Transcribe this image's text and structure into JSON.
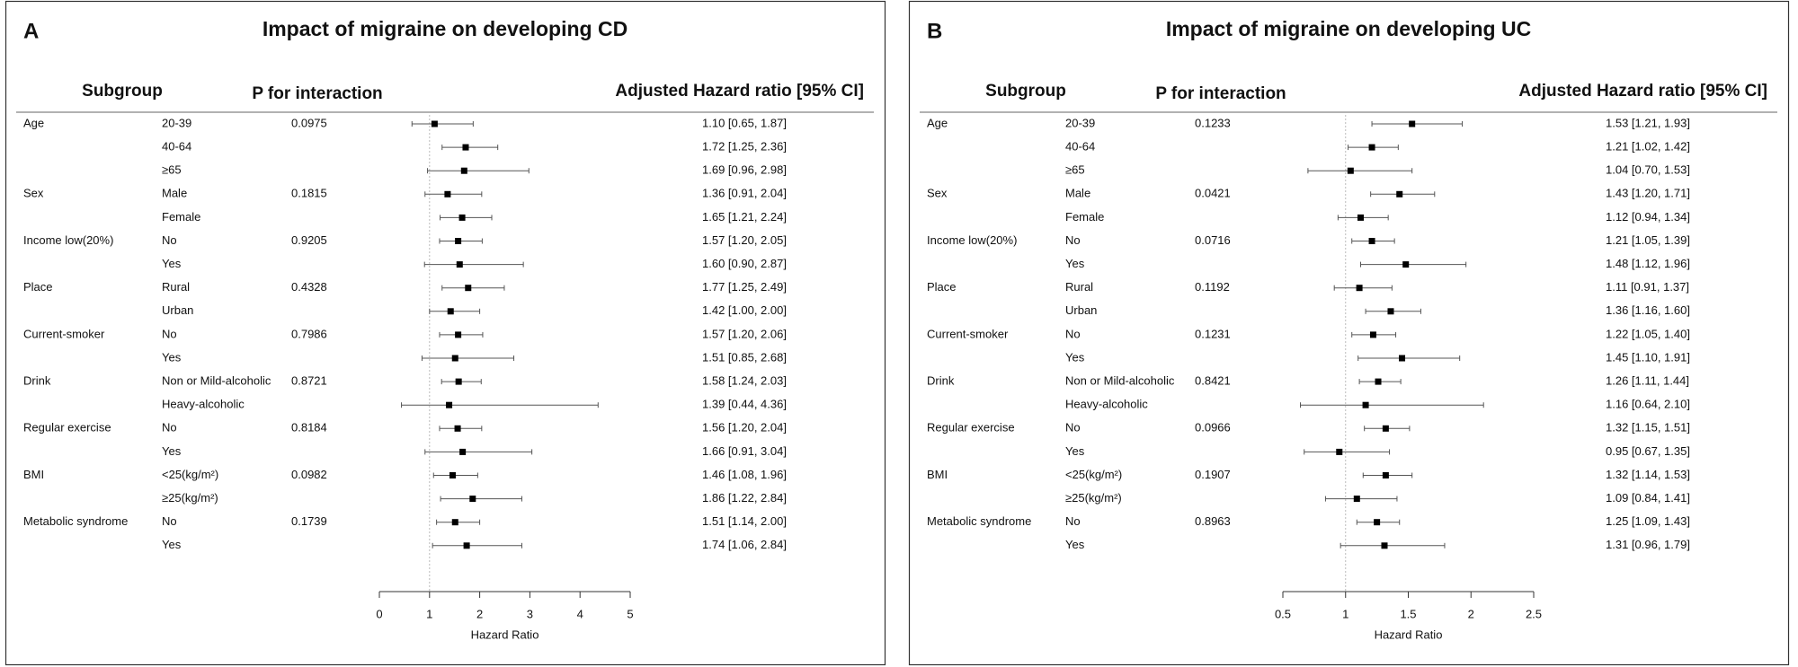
{
  "chart_data": [
    {
      "type": "forest",
      "panel_label": "A",
      "title": "Impact of migraine on developing CD",
      "columns": [
        "Subgroup",
        "P for interaction",
        "Adjusted Hazard ratio [95% CI]"
      ],
      "groups": [
        "Age",
        null,
        null,
        "Sex",
        null,
        "Income low(20%)",
        null,
        "Place",
        null,
        "Current-smoker",
        null,
        "Drink",
        null,
        "Regular exercise",
        null,
        "BMI",
        null,
        "Metabolic syndrome",
        null
      ],
      "categories": [
        "20-39",
        "40-64",
        "≥65",
        "Male",
        "Female",
        "No",
        "Yes",
        "Rural",
        "Urban",
        "No",
        "Yes",
        "Non or Mild-alcoholic",
        "Heavy-alcoholic",
        "No",
        "Yes",
        "<25(kg/m²)",
        "≥25(kg/m²)",
        "No",
        "Yes"
      ],
      "p_values": [
        0.0975,
        null,
        null,
        0.1815,
        null,
        0.9205,
        null,
        0.4328,
        null,
        0.7986,
        null,
        0.8721,
        null,
        0.8184,
        null,
        0.0982,
        null,
        0.1739,
        null
      ],
      "values": [
        1.1,
        1.72,
        1.69,
        1.36,
        1.65,
        1.57,
        1.6,
        1.77,
        1.42,
        1.57,
        1.51,
        1.58,
        1.39,
        1.56,
        1.66,
        1.46,
        1.86,
        1.51,
        1.74
      ],
      "lower": [
        0.65,
        1.25,
        0.96,
        0.91,
        1.21,
        1.2,
        0.9,
        1.25,
        1.0,
        1.2,
        0.85,
        1.24,
        0.44,
        1.2,
        0.91,
        1.08,
        1.22,
        1.14,
        1.06
      ],
      "upper": [
        1.87,
        2.36,
        2.98,
        2.04,
        2.24,
        2.05,
        2.87,
        2.49,
        2.0,
        2.06,
        2.68,
        2.03,
        4.36,
        2.04,
        3.04,
        1.96,
        2.84,
        2.0,
        2.84
      ],
      "value_labels": [
        "1.10 [0.65, 1.87]",
        "1.72 [1.25, 2.36]",
        "1.69 [0.96, 2.98]",
        "1.36 [0.91, 2.04]",
        "1.65 [1.21, 2.24]",
        "1.57 [1.20, 2.05]",
        "1.60 [0.90, 2.87]",
        "1.77 [1.25, 2.49]",
        "1.42 [1.00, 2.00]",
        "1.57 [1.20, 2.06]",
        "1.51 [0.85, 2.68]",
        "1.58 [1.24, 2.03]",
        "1.39 [0.44, 4.36]",
        "1.56 [1.20, 2.04]",
        "1.66 [0.91, 3.04]",
        "1.46 [1.08, 1.96]",
        "1.86 [1.22, 2.84]",
        "1.51 [1.14, 2.00]",
        "1.74 [1.06, 2.84]"
      ],
      "xlim": [
        0,
        5
      ],
      "xticks": [
        0,
        1,
        2,
        3,
        4,
        5
      ],
      "ref_line": 1,
      "xlabel": "Hazard Ratio",
      "color": "#000000"
    },
    {
      "type": "forest",
      "panel_label": "B",
      "title": "Impact of migraine on developing UC",
      "columns": [
        "Subgroup",
        "P for interaction",
        "Adjusted Hazard ratio [95% CI]"
      ],
      "groups": [
        "Age",
        null,
        null,
        "Sex",
        null,
        "Income low(20%)",
        null,
        "Place",
        null,
        "Current-smoker",
        null,
        "Drink",
        null,
        "Regular exercise",
        null,
        "BMI",
        null,
        "Metabolic syndrome",
        null
      ],
      "categories": [
        "20-39",
        "40-64",
        "≥65",
        "Male",
        "Female",
        "No",
        "Yes",
        "Rural",
        "Urban",
        "No",
        "Yes",
        "Non or Mild-alcoholic",
        "Heavy-alcoholic",
        "No",
        "Yes",
        "<25(kg/m²)",
        "≥25(kg/m²)",
        "No",
        "Yes"
      ],
      "p_values": [
        0.1233,
        null,
        null,
        0.0421,
        null,
        0.0716,
        null,
        0.1192,
        null,
        0.1231,
        null,
        0.8421,
        null,
        0.0966,
        null,
        0.1907,
        null,
        0.8963,
        null
      ],
      "values": [
        1.53,
        1.21,
        1.04,
        1.43,
        1.12,
        1.21,
        1.48,
        1.11,
        1.36,
        1.22,
        1.45,
        1.26,
        1.16,
        1.32,
        0.95,
        1.32,
        1.09,
        1.25,
        1.31
      ],
      "lower": [
        1.21,
        1.02,
        0.7,
        1.2,
        0.94,
        1.05,
        1.12,
        0.91,
        1.16,
        1.05,
        1.1,
        1.11,
        0.64,
        1.15,
        0.67,
        1.14,
        0.84,
        1.09,
        0.96
      ],
      "upper": [
        1.93,
        1.42,
        1.53,
        1.71,
        1.34,
        1.39,
        1.96,
        1.37,
        1.6,
        1.4,
        1.91,
        1.44,
        2.1,
        1.51,
        1.35,
        1.53,
        1.41,
        1.43,
        1.79
      ],
      "value_labels": [
        "1.53 [1.21, 1.93]",
        "1.21 [1.02, 1.42]",
        "1.04 [0.70, 1.53]",
        "1.43 [1.20, 1.71]",
        "1.12 [0.94, 1.34]",
        "1.21 [1.05, 1.39]",
        "1.48 [1.12, 1.96]",
        "1.11 [0.91, 1.37]",
        "1.36 [1.16, 1.60]",
        "1.22 [1.05, 1.40]",
        "1.45 [1.10, 1.91]",
        "1.26 [1.11, 1.44]",
        "1.16 [0.64, 2.10]",
        "1.32 [1.15, 1.51]",
        "0.95 [0.67, 1.35]",
        "1.32 [1.14, 1.53]",
        "1.09 [0.84, 1.41]",
        "1.25 [1.09, 1.43]",
        "1.31 [0.96, 1.79]"
      ],
      "xlim": [
        0.5,
        2.5
      ],
      "xticks": [
        0.5,
        1,
        1.5,
        2,
        2.5
      ],
      "ref_line": 1,
      "xlabel": "Hazard Ratio",
      "color": "#000000"
    }
  ]
}
